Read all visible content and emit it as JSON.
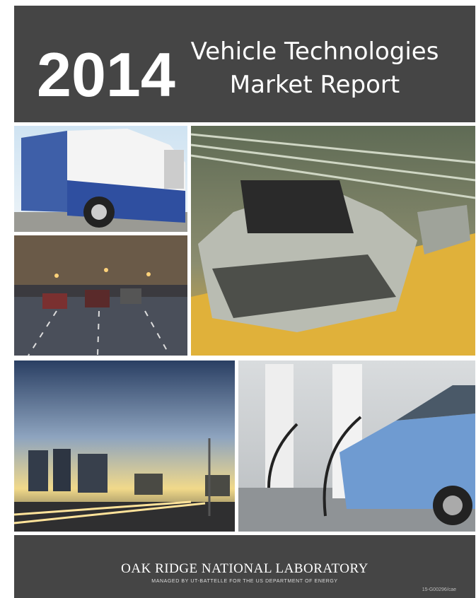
{
  "header": {
    "year": "2014",
    "title_line1": "Vehicle Technologies",
    "title_line2": "Market Report"
  },
  "footer": {
    "organization": "OAK RIDGE NATIONAL LABORATORY",
    "tagline": "MANAGED BY UT-BATTELLE FOR THE US DEPARTMENT OF ENERGY",
    "code": "15-G00296/cae"
  }
}
